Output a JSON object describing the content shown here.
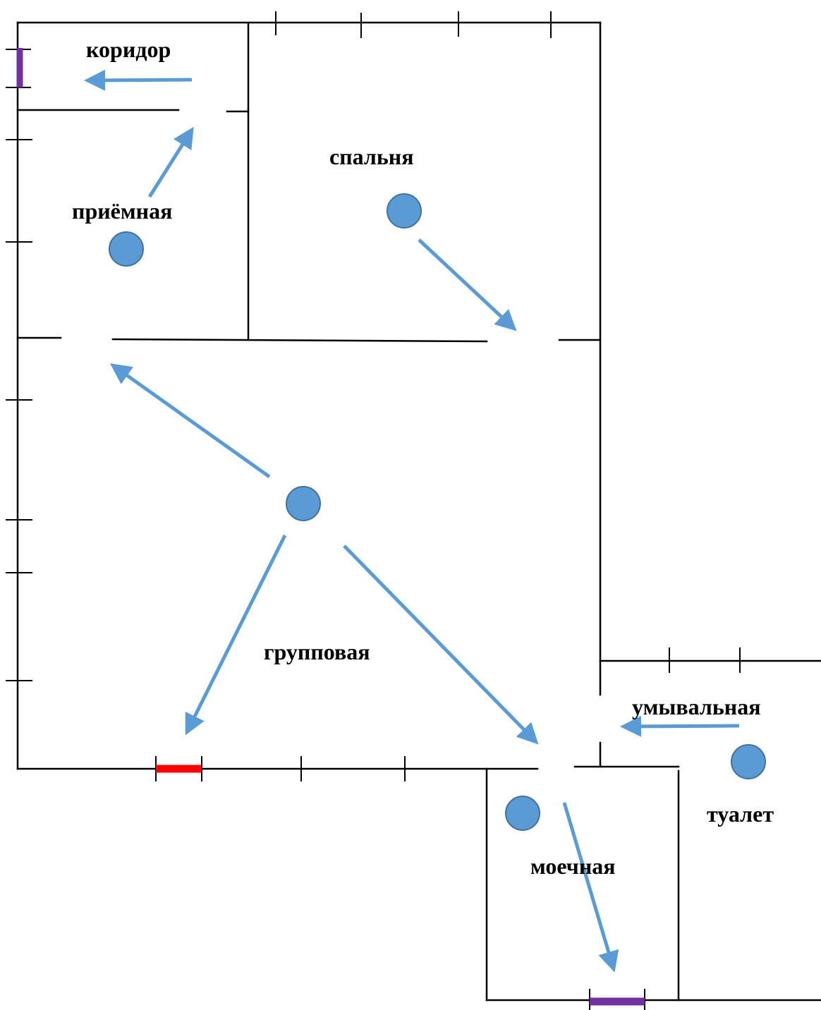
{
  "colors": {
    "marker": "#5b9bd5",
    "arrow": "#5b9bd5",
    "door_exit": "#7030a0",
    "door_emergency": "#ff0000"
  },
  "rooms": {
    "corridor": "коридор",
    "bedroom": "спальня",
    "reception": "приёмная",
    "group": "групповая",
    "washroom": "умывальная",
    "toilet": "туалет",
    "dishwashing": "моечная"
  }
}
